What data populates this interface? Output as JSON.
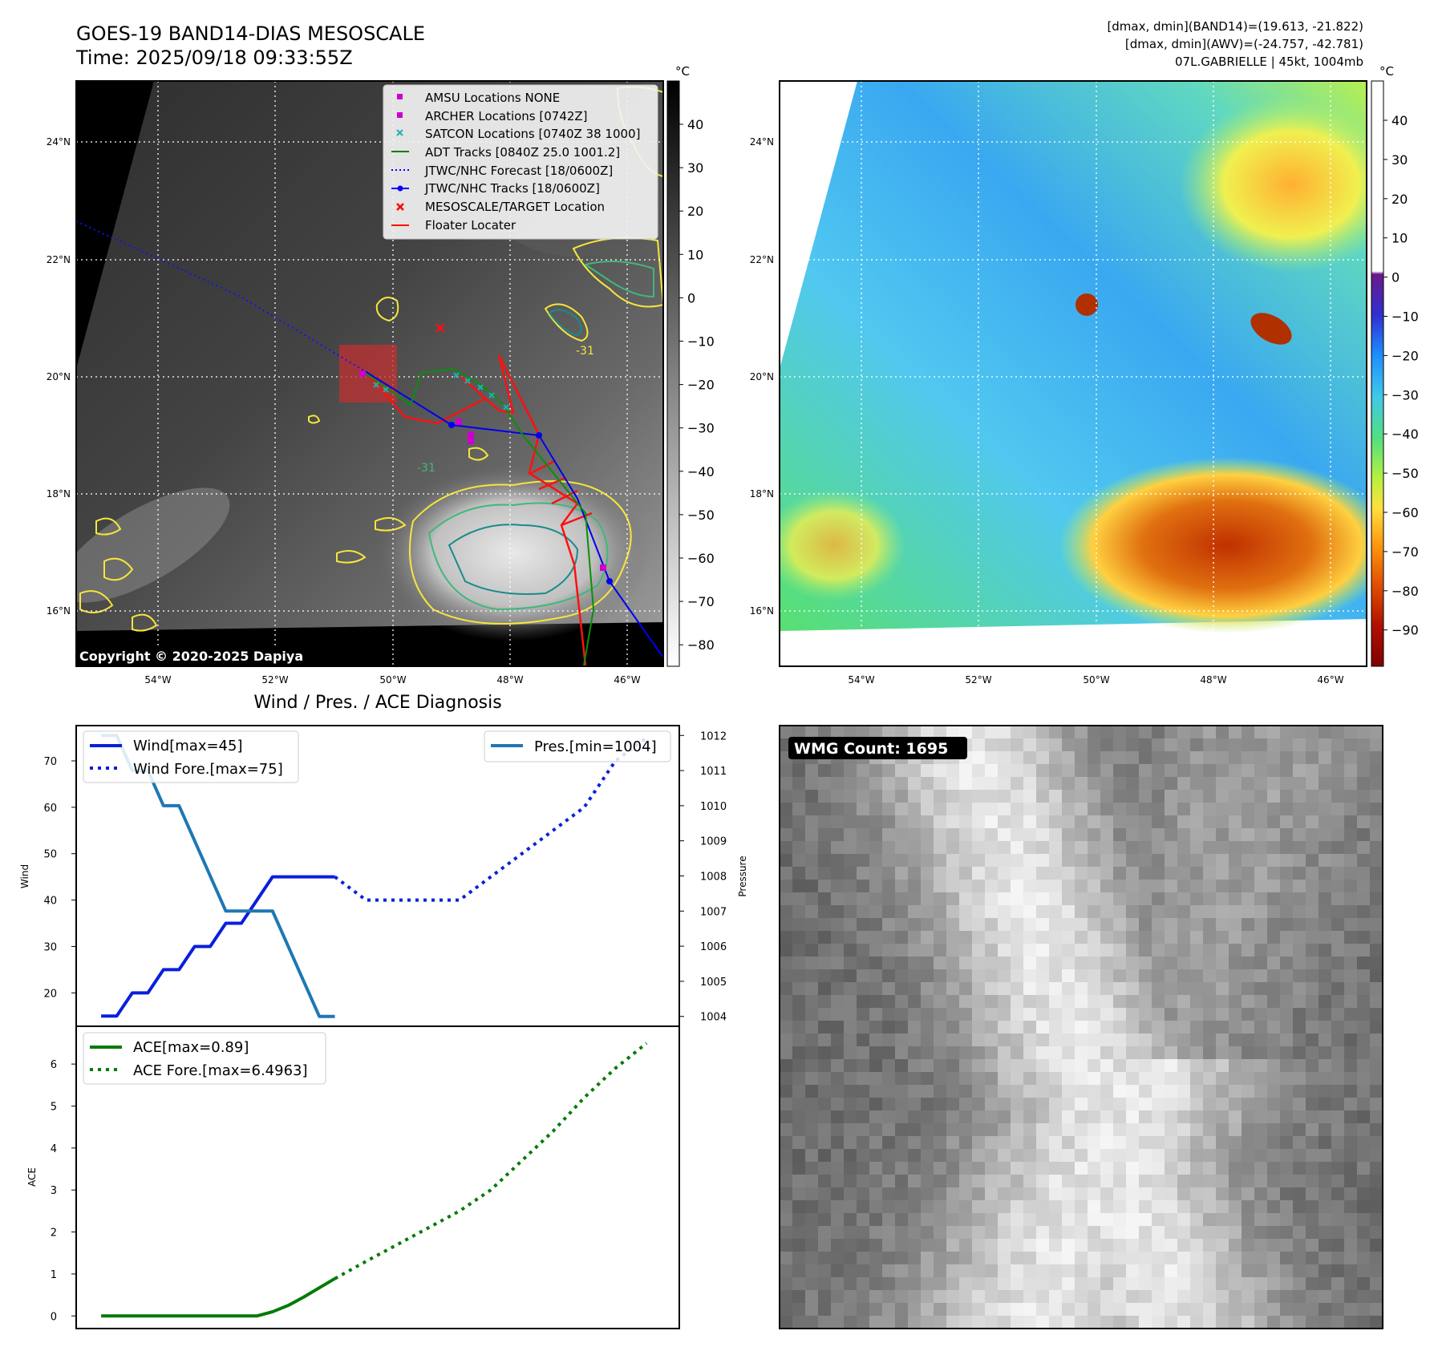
{
  "header": {
    "title": "GOES-19 BAND14-DIAS MESOSCALE",
    "time": "Time: 2025/09/18 09:33:55Z",
    "info_line1": "[dmax, dmin](BAND14)=(19.613, -21.822)",
    "info_line2": "[dmax, dmin](AWV)=(-24.757, -42.781)",
    "info_line3": "07L.GABRIELLE | 45kt, 1004mb"
  },
  "map_left": {
    "copyright": "Copyright © 2020-2025 Dapiya",
    "unit": "°C",
    "lat_labels": [
      "24°N",
      "22°N",
      "20°N",
      "18°N",
      "16°N"
    ],
    "lon_labels": [
      "54°W",
      "52°W",
      "50°W",
      "48°W",
      "46°W"
    ],
    "colorbar_ticks": [
      "40",
      "30",
      "20",
      "10",
      "0",
      "−10",
      "−20",
      "−30",
      "−40",
      "−50",
      "−60",
      "−70",
      "−80"
    ],
    "contour_label": "-31",
    "legend": [
      {
        "label": "AMSU Locations NONE",
        "marker": "square",
        "color": "#cc00cc"
      },
      {
        "label": "ARCHER Locations [0742Z]",
        "marker": "square",
        "color": "#cc00cc"
      },
      {
        "label": "SATCON Locations [0740Z 38 1000]",
        "marker": "x",
        "color": "#20b0b0"
      },
      {
        "label": "ADT Tracks [0840Z 25.0 1001.2]",
        "marker": "line",
        "color": "#008000"
      },
      {
        "label": "JTWC/NHC Forecast [18/0600Z]",
        "marker": "dotted",
        "color": "#0000ff"
      },
      {
        "label": "JTWC/NHC Tracks [18/0600Z]",
        "marker": "line-dot",
        "color": "#0000ff"
      },
      {
        "label": "MESOSCALE/TARGET Location",
        "marker": "x",
        "color": "#ff0000"
      },
      {
        "label": "Floater Locater",
        "marker": "line",
        "color": "#ff0000"
      }
    ]
  },
  "map_right": {
    "unit": "°C",
    "lat_labels": [
      "24°N",
      "22°N",
      "20°N",
      "18°N",
      "16°N"
    ],
    "lon_labels": [
      "54°W",
      "52°W",
      "50°W",
      "48°W",
      "46°W"
    ],
    "colorbar_ticks": [
      "40",
      "30",
      "20",
      "10",
      "0",
      "−10",
      "−20",
      "−30",
      "−40",
      "−50",
      "−60",
      "−70",
      "−80",
      "−90"
    ]
  },
  "wmg_panel": {
    "label": "WMG Count: 1695"
  },
  "colors": {
    "wind": "#0a1fdc",
    "pressure": "#1f77b4",
    "ace": "#067a06"
  },
  "chart_data": [
    {
      "type": "line",
      "title": "Wind / Pres. / ACE Diagnosis",
      "ylabel": "Wind",
      "ylabel_right": "Pressure",
      "ylim": [
        12.8,
        77.6
      ],
      "ylim_right": [
        1003.72,
        1012.28
      ],
      "yticks": [
        20,
        30,
        40,
        50,
        60,
        70
      ],
      "yticks_right": [
        1004,
        1005,
        1006,
        1007,
        1008,
        1009,
        1010,
        1011,
        1012
      ],
      "legend_left": [
        "Wind[max=45]",
        "Wind Fore.[max=75]"
      ],
      "legend_right": [
        "Pres.[min=1004]"
      ],
      "x": [
        0,
        1,
        2,
        3,
        4,
        5,
        6,
        7,
        8,
        9,
        10,
        11,
        12,
        13,
        14,
        15
      ],
      "series": [
        {
          "name": "Wind[max=45]",
          "style": "solid",
          "x": [
            0,
            1,
            2,
            3,
            4,
            5,
            6,
            7,
            8,
            9,
            10,
            11,
            12,
            13,
            14,
            15
          ],
          "values": [
            15,
            15,
            20,
            20,
            25,
            25,
            30,
            30,
            35,
            35,
            40,
            45,
            45,
            45,
            45,
            45
          ]
        },
        {
          "name": "Wind Fore.[max=75]",
          "style": "dotted",
          "x": [
            15,
            17,
            19,
            21,
            23,
            25,
            27,
            29,
            31,
            33,
            35
          ],
          "values": [
            45,
            40,
            40,
            40,
            40,
            45,
            50,
            55,
            60,
            70,
            75
          ]
        },
        {
          "name": "Pres.[min=1004]",
          "style": "solid",
          "axis": "right",
          "x": [
            0,
            1,
            2,
            3,
            4,
            5,
            6,
            7,
            8,
            9,
            10,
            11,
            12,
            13,
            14,
            15
          ],
          "values": [
            1012,
            1012,
            1011,
            1011,
            1010,
            1010,
            1009,
            1008,
            1007,
            1007,
            1007,
            1007,
            1006,
            1005,
            1004,
            1004
          ]
        }
      ]
    },
    {
      "type": "line",
      "ylabel": "ACE",
      "ylim": [
        -0.3,
        6.9
      ],
      "yticks": [
        0,
        1,
        2,
        3,
        4,
        5,
        6
      ],
      "legend": [
        "ACE[max=0.89]",
        "ACE Fore.[max=6.4963]"
      ],
      "series": [
        {
          "name": "ACE[max=0.89]",
          "style": "solid",
          "x": [
            0,
            1,
            2,
            3,
            4,
            5,
            6,
            7,
            8,
            9,
            10,
            11,
            12,
            13,
            14,
            15
          ],
          "values": [
            0,
            0,
            0,
            0,
            0,
            0,
            0,
            0,
            0,
            0,
            0,
            0.1,
            0.25,
            0.45,
            0.67,
            0.89
          ]
        },
        {
          "name": "ACE Fore.[max=6.4963]",
          "style": "dotted",
          "x": [
            15,
            17,
            19,
            21,
            23,
            25,
            27,
            29,
            31,
            33,
            35
          ],
          "values": [
            0.89,
            1.3,
            1.7,
            2.1,
            2.5,
            3.0,
            3.7,
            4.4,
            5.2,
            5.9,
            6.4963
          ]
        }
      ]
    }
  ]
}
